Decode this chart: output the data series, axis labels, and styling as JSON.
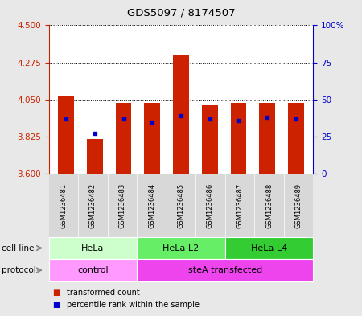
{
  "title": "GDS5097 / 8174507",
  "samples": [
    "GSM1236481",
    "GSM1236482",
    "GSM1236483",
    "GSM1236484",
    "GSM1236485",
    "GSM1236486",
    "GSM1236487",
    "GSM1236488",
    "GSM1236489"
  ],
  "transformed_counts": [
    4.07,
    3.81,
    4.03,
    4.03,
    4.32,
    4.02,
    4.03,
    4.03,
    4.03
  ],
  "percentile_ranks": [
    37,
    27,
    37,
    35,
    39,
    37,
    36,
    38,
    37
  ],
  "ylim_left": [
    3.6,
    4.5
  ],
  "yticks_left": [
    3.6,
    3.825,
    4.05,
    4.275,
    4.5
  ],
  "yticks_right": [
    0,
    25,
    50,
    75,
    100
  ],
  "ylim_right": [
    0,
    100
  ],
  "bar_color": "#cc2200",
  "dot_color": "#0000cc",
  "bar_bottom": 3.6,
  "cell_line_groups": [
    {
      "label": "HeLa",
      "start": 0,
      "end": 3,
      "color": "#ccffcc"
    },
    {
      "label": "HeLa L2",
      "start": 3,
      "end": 6,
      "color": "#66ee66"
    },
    {
      "label": "HeLa L4",
      "start": 6,
      "end": 9,
      "color": "#33cc33"
    }
  ],
  "protocol_groups": [
    {
      "label": "control",
      "start": 0,
      "end": 3,
      "color": "#ff99ff"
    },
    {
      "label": "steA transfected",
      "start": 3,
      "end": 9,
      "color": "#ee44ee"
    }
  ],
  "bg_color": "#e8e8e8",
  "plot_bg_color": "#ffffff",
  "left_tick_color": "#cc2200",
  "right_tick_color": "#0000cc",
  "sample_bg_color": "#d8d8d8"
}
